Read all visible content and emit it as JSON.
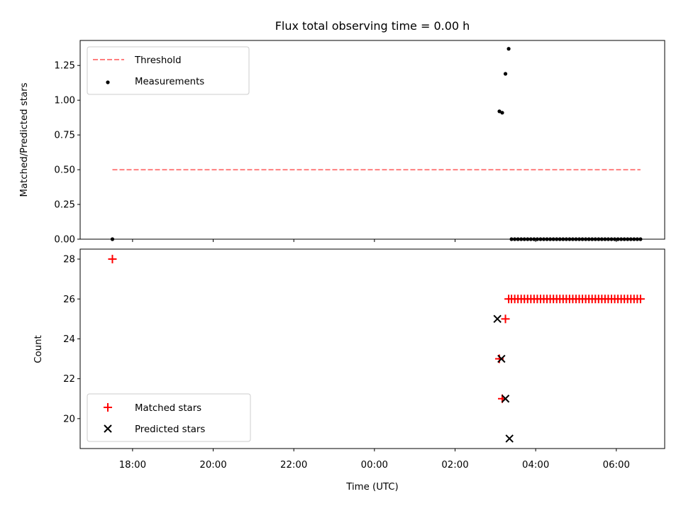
{
  "chart_data": {
    "type": "scatter",
    "title": "Flux total observing time = 0.00 h",
    "xlabel": "Time (UTC)",
    "x_unit": "hours since 00:00 UTC",
    "xlim": [
      -7.3,
      7.2
    ],
    "xticks": [
      -6,
      -4,
      -2,
      0,
      2,
      4,
      6
    ],
    "xtick_labels": [
      "18:00",
      "20:00",
      "22:00",
      "00:00",
      "02:00",
      "04:00",
      "06:00"
    ],
    "panels": [
      {
        "ylabel": "Matched/Predicted stars",
        "ylim": [
          0,
          1.43
        ],
        "yticks": [
          0,
          0.25,
          0.5,
          0.75,
          1.0,
          1.25
        ],
        "ytick_labels": [
          "0.00",
          "0.25",
          "0.50",
          "0.75",
          "1.00",
          "1.25"
        ],
        "legend_position": "upper-left",
        "series": [
          {
            "name": "Threshold",
            "kind": "line",
            "style": "dashed",
            "color": "#ff7f7f",
            "x": [
              -6.5,
              6.6
            ],
            "y": [
              0.5,
              0.5
            ]
          },
          {
            "name": "Measurements",
            "kind": "scatter",
            "marker": "dot",
            "color": "#000000",
            "x": [
              -6.5,
              3.1,
              3.17,
              3.25,
              3.33,
              3.4,
              3.48,
              3.56,
              3.64,
              3.72,
              3.8,
              3.88,
              3.96,
              4.04,
              4.12,
              4.2,
              4.28,
              4.36,
              4.44,
              4.52,
              4.6,
              4.68,
              4.76,
              4.84,
              4.92,
              5.0,
              5.08,
              5.16,
              5.24,
              5.32,
              5.4,
              5.48,
              5.56,
              5.64,
              5.72,
              5.8,
              5.88,
              5.96,
              6.04,
              6.12,
              6.2,
              6.28,
              6.36,
              6.44,
              6.52,
              6.6
            ],
            "y": [
              0,
              0.92,
              0.91,
              1.19,
              1.37,
              0,
              0,
              0,
              0,
              0,
              0,
              0,
              0,
              0,
              0,
              0,
              0,
              0,
              0,
              0,
              0,
              0,
              0,
              0,
              0,
              0,
              0,
              0,
              0,
              0,
              0,
              0,
              0,
              0,
              0,
              0,
              0,
              0,
              0,
              0,
              0,
              0,
              0,
              0,
              0,
              0
            ]
          }
        ]
      },
      {
        "ylabel": "Count",
        "ylim": [
          18.5,
          28.5
        ],
        "yticks": [
          20,
          22,
          24,
          26,
          28
        ],
        "ytick_labels": [
          "20",
          "22",
          "24",
          "26",
          "28"
        ],
        "legend_position": "lower-left",
        "series": [
          {
            "name": "Matched stars",
            "kind": "scatter",
            "marker": "plus",
            "color": "#ff0000",
            "x": [
              -6.5,
              3.1,
              3.17,
              3.25,
              3.33,
              3.4,
              3.48,
              3.56,
              3.64,
              3.72,
              3.8,
              3.88,
              3.96,
              4.04,
              4.12,
              4.2,
              4.28,
              4.36,
              4.44,
              4.52,
              4.6,
              4.68,
              4.76,
              4.84,
              4.92,
              5.0,
              5.08,
              5.16,
              5.24,
              5.32,
              5.4,
              5.48,
              5.56,
              5.64,
              5.72,
              5.8,
              5.88,
              5.96,
              6.04,
              6.12,
              6.2,
              6.28,
              6.36,
              6.44,
              6.52,
              6.6
            ],
            "y": [
              28,
              23,
              21,
              25,
              26,
              26,
              26,
              26,
              26,
              26,
              26,
              26,
              26,
              26,
              26,
              26,
              26,
              26,
              26,
              26,
              26,
              26,
              26,
              26,
              26,
              26,
              26,
              26,
              26,
              26,
              26,
              26,
              26,
              26,
              26,
              26,
              26,
              26,
              26,
              26,
              26,
              26,
              26,
              26,
              26,
              26
            ]
          },
          {
            "name": "Predicted stars",
            "kind": "scatter",
            "marker": "x",
            "color": "#000000",
            "x": [
              3.05,
              3.15,
              3.25,
              3.35
            ],
            "y": [
              25,
              23,
              21,
              19
            ]
          }
        ]
      }
    ]
  }
}
